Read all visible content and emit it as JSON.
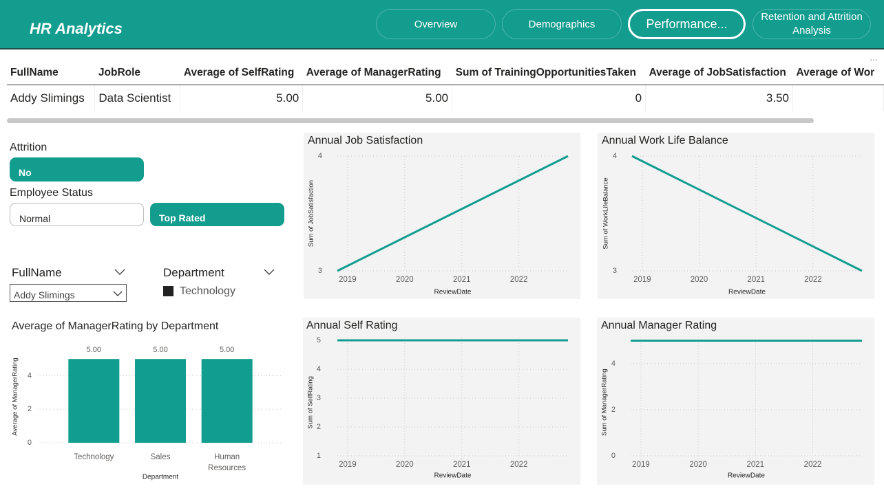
{
  "header": {
    "title": "HR Analytics",
    "nav": [
      "Overview",
      "Demographics",
      "Performance...",
      "Retention and Attrition Analysis"
    ]
  },
  "table": {
    "columns": [
      "FullName",
      "JobRole",
      "Average of SelfRating",
      "Average of ManagerRating",
      "Sum of TrainingOpportunitiesTaken",
      "Average of JobSatisfaction",
      "Average of Wor"
    ],
    "rows": [
      [
        "Addy Slimings",
        "Data Scientist",
        "5.00",
        "5.00",
        "0",
        "3.50"
      ]
    ]
  },
  "filters": {
    "attrition": {
      "label": "Attrition",
      "options": [
        "No"
      ]
    },
    "employee_status": {
      "label": "Employee Status",
      "options": [
        "Normal",
        "Top Rated"
      ]
    },
    "fullname": {
      "label": "FullName",
      "selected": "Addy Slimings"
    },
    "department": {
      "label": "Department",
      "items": [
        "Technology"
      ]
    }
  },
  "chart_data": [
    {
      "type": "bar",
      "title": "Average of ManagerRating by Department",
      "categories": [
        "Technology",
        "Sales",
        "Human Resources"
      ],
      "values": [
        5,
        5,
        5
      ],
      "value_labels": [
        "5.00",
        "5.00",
        "5.00"
      ],
      "color": "#119d8f",
      "ylim": [
        0,
        5.5
      ],
      "yticks": [
        0,
        2,
        4
      ],
      "grid": true,
      "x_label": "Department",
      "y_label": "Average of ManagerRating"
    },
    {
      "type": "line",
      "title": "Annual Job Satisfaction",
      "x": [
        2018.82,
        2022.86
      ],
      "values": [
        3,
        4
      ],
      "color": "#119d8f",
      "xlim": [
        2018.82,
        2022.86
      ],
      "xticks": [
        2019,
        2020,
        2021,
        2022
      ],
      "ylim": [
        3,
        4
      ],
      "yticks": [
        3,
        4
      ],
      "grid": true,
      "x_label": "ReviewDate",
      "y_label": "Sum of JobSatisfaction"
    },
    {
      "type": "line",
      "title": "Annual Work Life Balance",
      "x": [
        2018.82,
        2022.86
      ],
      "values": [
        4,
        3
      ],
      "color": "#119d8f",
      "xlim": [
        2018.82,
        2022.86
      ],
      "xticks": [
        2019,
        2020,
        2021,
        2022
      ],
      "ylim": [
        3,
        4
      ],
      "yticks": [
        3,
        4
      ],
      "grid": true,
      "x_label": "ReviewDate",
      "y_label": "Sum of WorkLifeBalance"
    },
    {
      "type": "line",
      "title": "Annual Self Rating",
      "x": [
        2018.82,
        2022.86
      ],
      "values": [
        5,
        5
      ],
      "color": "#119d8f",
      "xlim": [
        2018.82,
        2022.86
      ],
      "xticks": [
        2019,
        2020,
        2021,
        2022
      ],
      "ylim": [
        0.6,
        5.1
      ],
      "yticks": [
        1,
        2,
        3,
        4,
        5
      ],
      "grid": true,
      "x_label": "ReviewDate",
      "y_label": "Sum of SelfRating"
    },
    {
      "type": "line",
      "title": "Annual Manager Rating",
      "x": [
        2018.82,
        2022.86
      ],
      "values": [
        5,
        5
      ],
      "color": "#119d8f",
      "xlim": [
        2018.82,
        2022.86
      ],
      "xticks": [
        2019,
        2020,
        2021,
        2022
      ],
      "ylim": [
        -0.5,
        5.15
      ],
      "yticks": [
        0,
        2,
        4
      ],
      "grid": true,
      "x_label": "ReviewDate",
      "y_label": "Sum of ManagerRating"
    }
  ]
}
